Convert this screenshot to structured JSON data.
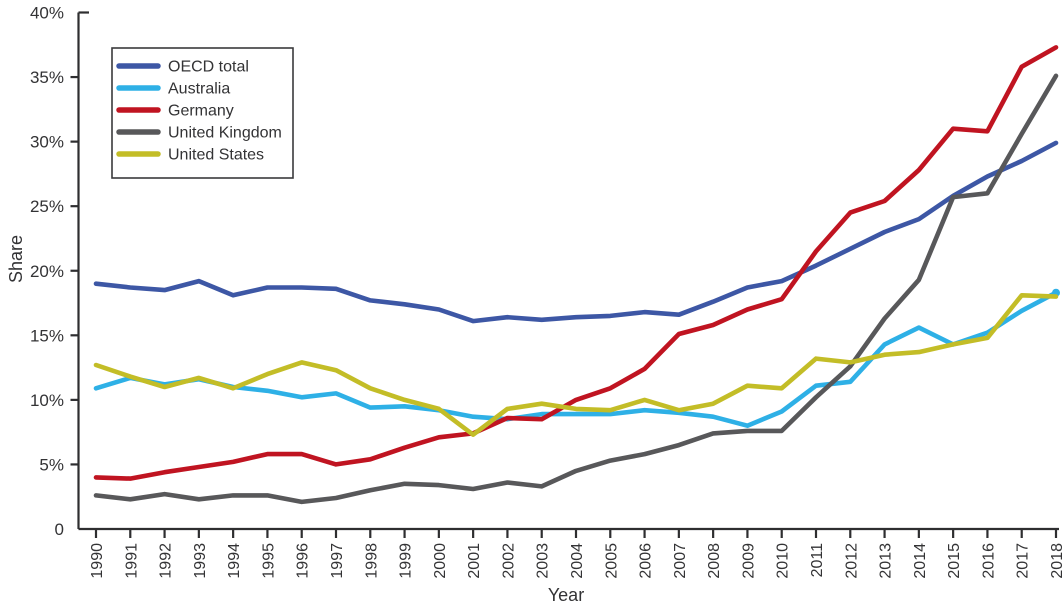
{
  "chart_data": {
    "type": "line",
    "title": "",
    "xlabel": "Year",
    "ylabel": "Share",
    "grid": false,
    "legend_position": "top-left",
    "ylim": [
      0,
      40
    ],
    "ytick_values": [
      0,
      5,
      10,
      15,
      20,
      25,
      30,
      35,
      40
    ],
    "ytick_labels": [
      "0",
      "5%",
      "10%",
      "15%",
      "20%",
      "25%",
      "30%",
      "35%",
      "40%"
    ],
    "x": [
      1990,
      1991,
      1992,
      1993,
      1994,
      1995,
      1996,
      1997,
      1998,
      1999,
      2000,
      2001,
      2002,
      2003,
      2004,
      2005,
      2006,
      2007,
      2008,
      2009,
      2010,
      2011,
      2012,
      2013,
      2014,
      2015,
      2016,
      2017,
      2018
    ],
    "x_labels": [
      "1990",
      "1991",
      "1992",
      "1993",
      "1994",
      "1995",
      "1996",
      "1997",
      "1998",
      "1999",
      "2000",
      "2001",
      "2002",
      "2003",
      "2004",
      "2005",
      "2006",
      "2007",
      "2008",
      "2009",
      "2010",
      "2011",
      "2012",
      "2013",
      "2014",
      "2015",
      "2016",
      "2017",
      "2018"
    ],
    "series": [
      {
        "name": "OECD total",
        "color": "#3d57a5",
        "end_dot": false,
        "values": [
          19.0,
          18.7,
          18.5,
          19.2,
          18.1,
          18.7,
          18.7,
          18.6,
          17.7,
          17.4,
          17.0,
          16.1,
          16.4,
          16.2,
          16.4,
          16.5,
          16.8,
          16.6,
          17.6,
          18.7,
          19.2,
          20.4,
          21.7,
          23.0,
          24.0,
          25.8,
          27.3,
          28.5,
          29.9
        ]
      },
      {
        "name": "Australia",
        "color": "#2eb0e6",
        "end_dot": true,
        "values": [
          10.9,
          11.7,
          11.2,
          11.6,
          11.0,
          10.7,
          10.2,
          10.5,
          9.4,
          9.5,
          9.2,
          8.7,
          8.5,
          8.9,
          8.9,
          8.9,
          9.2,
          9.0,
          8.7,
          8.0,
          9.1,
          11.1,
          11.4,
          14.3,
          15.6,
          14.3,
          15.2,
          16.9,
          18.3
        ]
      },
      {
        "name": "Germany",
        "color": "#c01421",
        "end_dot": false,
        "values": [
          4.0,
          3.9,
          4.4,
          4.8,
          5.2,
          5.8,
          5.8,
          5.0,
          5.4,
          6.3,
          7.1,
          7.4,
          8.6,
          8.5,
          10.0,
          10.9,
          12.4,
          15.1,
          15.8,
          17.0,
          17.8,
          21.5,
          24.5,
          25.4,
          27.8,
          31.0,
          30.8,
          35.8,
          37.3
        ]
      },
      {
        "name": "United Kingdom",
        "color": "#58585a",
        "end_dot": false,
        "values": [
          2.6,
          2.3,
          2.7,
          2.3,
          2.6,
          2.6,
          2.1,
          2.4,
          3.0,
          3.5,
          3.4,
          3.1,
          3.6,
          3.3,
          4.5,
          5.3,
          5.8,
          6.5,
          7.4,
          7.6,
          7.6,
          10.2,
          12.6,
          16.3,
          19.3,
          25.7,
          26.0,
          30.6,
          35.1
        ]
      },
      {
        "name": "United States",
        "color": "#c3bd27",
        "end_dot": false,
        "values": [
          12.7,
          11.8,
          11.0,
          11.7,
          10.9,
          12.0,
          12.9,
          12.3,
          10.9,
          10.0,
          9.3,
          7.3,
          9.3,
          9.7,
          9.3,
          9.2,
          10.0,
          9.2,
          9.7,
          11.1,
          10.9,
          13.2,
          12.9,
          13.5,
          13.7,
          14.3,
          14.8,
          18.1,
          18.0
        ]
      }
    ]
  },
  "colors": {
    "background": "#ffffff",
    "axis": "#2e2e30",
    "text": "#333335",
    "legend_border": "#3a3a3c"
  }
}
